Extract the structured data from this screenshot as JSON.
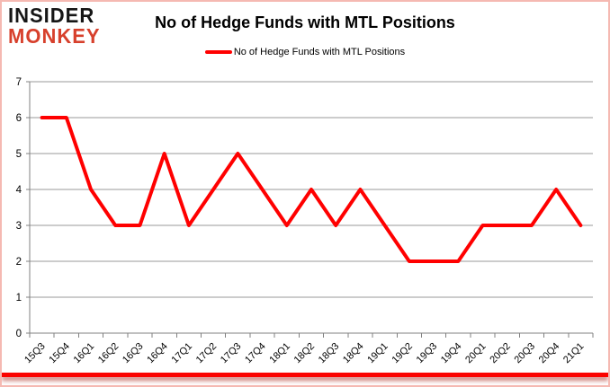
{
  "logo": {
    "line1": "INSIDER",
    "line2": "MONKEY"
  },
  "chart_data": {
    "type": "line",
    "title": "No of Hedge Funds with MTL Positions",
    "categories": [
      "15Q3",
      "15Q4",
      "16Q1",
      "16Q2",
      "16Q3",
      "16Q4",
      "17Q1",
      "17Q2",
      "17Q3",
      "17Q4",
      "18Q1",
      "18Q2",
      "18Q3",
      "18Q4",
      "19Q1",
      "19Q2",
      "19Q3",
      "19Q4",
      "20Q1",
      "20Q2",
      "20Q3",
      "20Q4",
      "21Q1"
    ],
    "series": [
      {
        "name": "No of Hedge Funds with MTL Positions",
        "values": [
          6,
          6,
          4,
          3,
          3,
          5,
          3,
          4,
          5,
          4,
          3,
          4,
          3,
          4,
          3,
          2,
          2,
          2,
          3,
          3,
          3,
          4,
          3
        ]
      }
    ],
    "ylim": [
      0,
      7
    ],
    "yticks": [
      0,
      1,
      2,
      3,
      4,
      5,
      6,
      7
    ],
    "grid": true,
    "legend_position": "top-center",
    "line_color": "#ff0000"
  },
  "colors": {
    "line": "#ff0000",
    "logo_black": "#161616",
    "logo_red": "#d7402c",
    "frame_border": "#f5b9b2",
    "bottom_bar": "#fb0300",
    "gridline": "#999999",
    "axis": "#808080",
    "text": "#000000"
  }
}
